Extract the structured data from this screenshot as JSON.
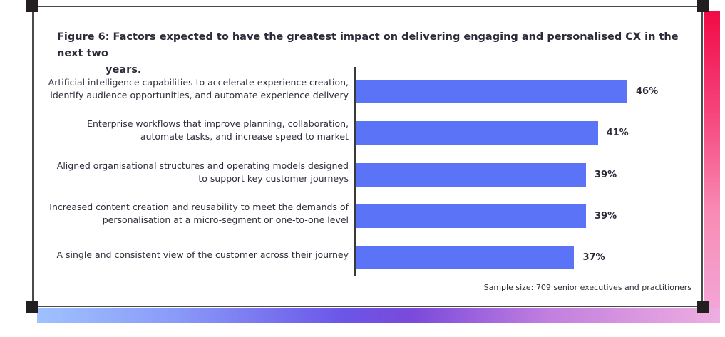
{
  "chart_data": {
    "type": "bar",
    "orientation": "horizontal",
    "title": "Figure 6: Factors expected to have the greatest impact on delivering engaging and personalised CX in the next two years.",
    "title_lines": [
      "Figure 6: Factors expected to have the greatest impact on delivering engaging and personalised CX in the next two",
      "years."
    ],
    "categories": [
      [
        "Artificial intelligence capabilities to accelerate experience creation,",
        "identify audience opportunities, and automate experience delivery"
      ],
      [
        "Enterprise workflows that improve planning, collaboration,",
        "automate tasks, and increase speed to market"
      ],
      [
        "Aligned organisational structures and operating models designed",
        "to support key customer journeys"
      ],
      [
        "Increased content creation and reusability to meet the demands of",
        "personalisation at a micro-segment or one-to-one level"
      ],
      [
        "A single and consistent view of the customer across their journey"
      ]
    ],
    "values": [
      46,
      41,
      39,
      39,
      37
    ],
    "value_labels": [
      "46%",
      "41%",
      "39%",
      "39%",
      "37%"
    ],
    "unit": "%",
    "xlabel": "",
    "ylabel": "",
    "xlim": [
      0,
      50
    ],
    "grid": false,
    "bar_color": "#5b74f7",
    "footnote": "Sample size: 709 senior executives and practitioners"
  },
  "decor": {
    "right_gradient": [
      "#f10a45",
      "#f1a9dc"
    ],
    "bottom_gradient": [
      "#9fc2fe",
      "#6b55e8",
      "#efaee0"
    ]
  }
}
